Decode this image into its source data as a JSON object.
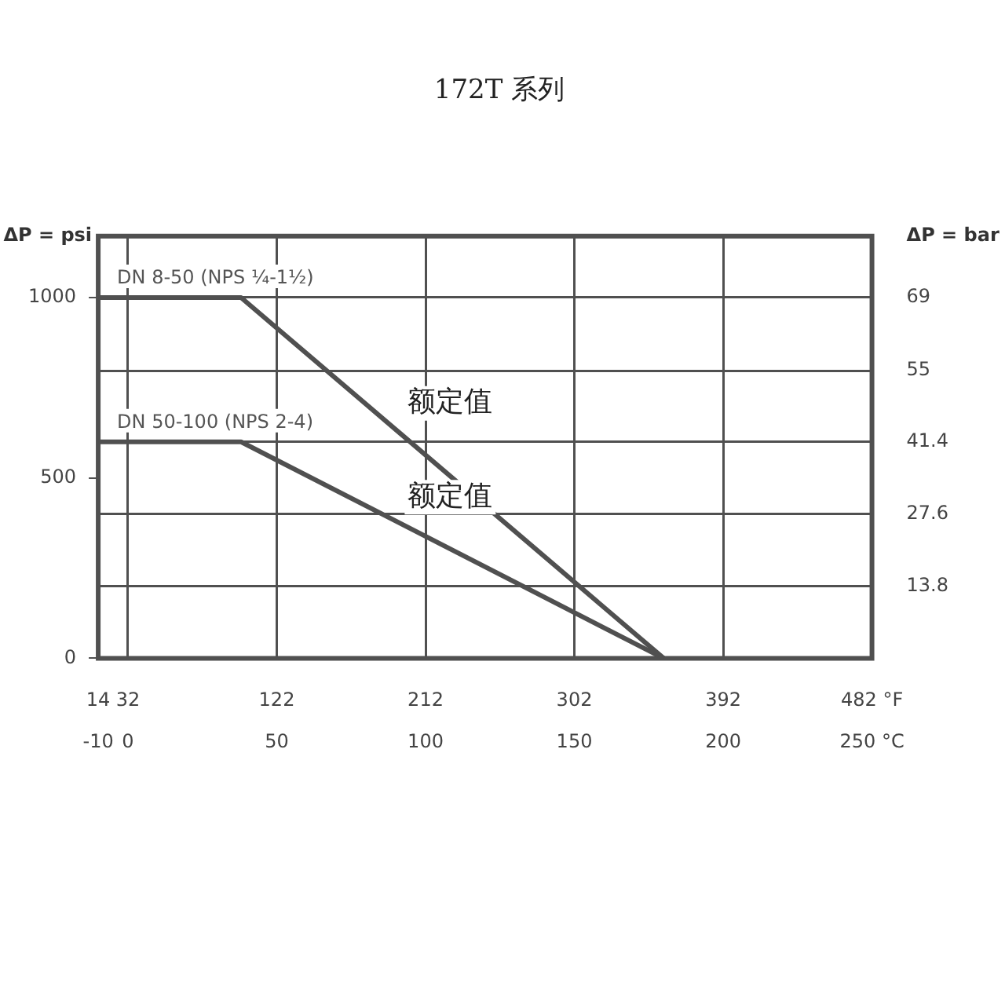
{
  "chart_data": {
    "type": "line",
    "title": "172T 系列",
    "ylabel": "ΔP = psi",
    "y2label": "ΔP = bar",
    "x": [
      -10,
      38,
      180
    ],
    "series": [
      {
        "name": "DN 8-50 (NPS ¼-1½)",
        "color": "#505050",
        "values": [
          1000,
          1000,
          0
        ]
      },
      {
        "name": "DN 50-100 (NPS 2-4)",
        "color": "#505050",
        "values": [
          600,
          600,
          0
        ]
      }
    ],
    "xlim": [
      -10,
      250
    ],
    "xticks": [
      -10,
      0,
      50,
      100,
      150,
      200,
      {
        "value": 250,
        "label": "250 °C"
      }
    ],
    "x2lim": [
      14,
      482
    ],
    "x2ticks": [
      14,
      32,
      122,
      212,
      302,
      392,
      {
        "value": 482,
        "label": "482 °F"
      }
    ],
    "ylim": [
      0,
      1170
    ],
    "yticks": [
      0,
      500,
      1000
    ],
    "y2lim": [
      0,
      80.7
    ],
    "y2ticks": [
      13.8,
      27.6,
      41.4,
      55,
      69
    ],
    "annotations": [
      "额定值",
      "额定值"
    ],
    "grid": true,
    "legend": false,
    "marker": "none",
    "line_style": "solid"
  }
}
